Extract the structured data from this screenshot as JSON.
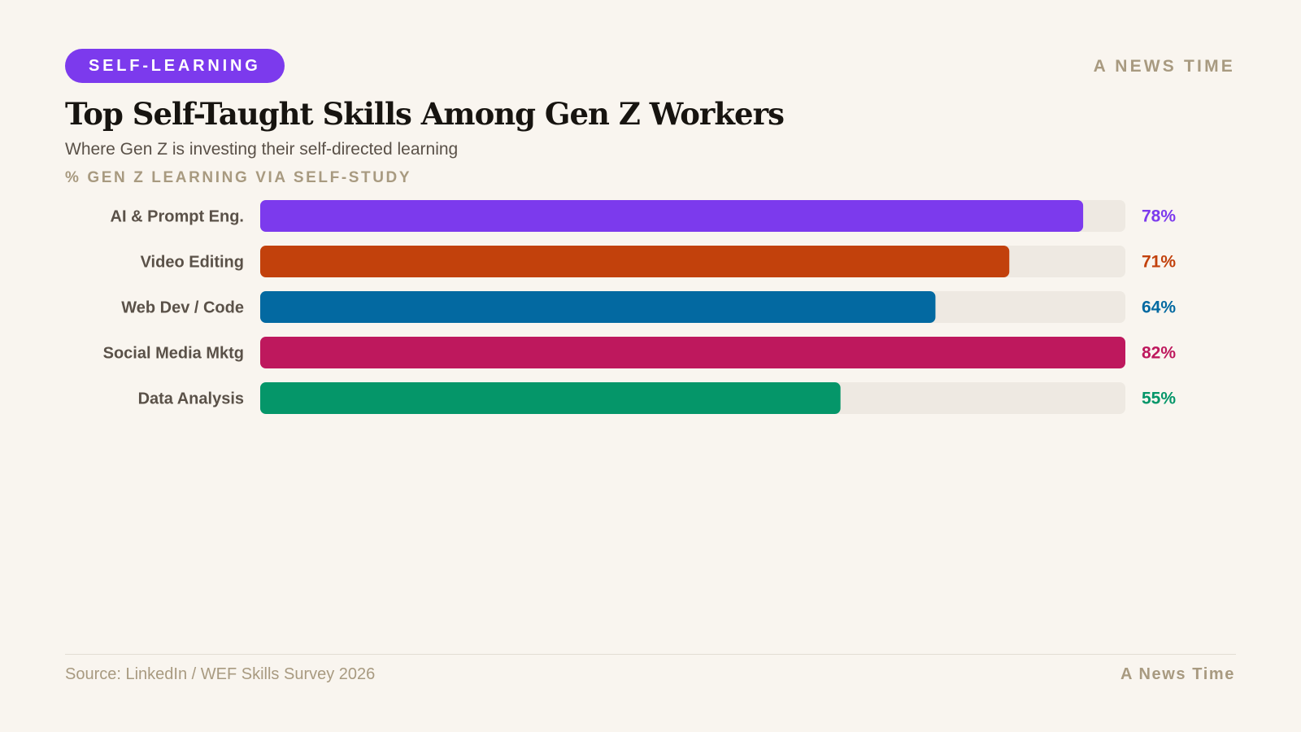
{
  "header": {
    "tag": "SELF-LEARNING",
    "brand": "A NEWS TIME",
    "title": "Top Self-Taught Skills Among Gen Z Workers",
    "subtitle": "Where Gen Z is investing their self-directed learning",
    "axis_label": "% GEN Z LEARNING VIA SELF-STUDY"
  },
  "footer": {
    "source": "Source: LinkedIn / WEF Skills Survey 2026",
    "brand": "A News Time"
  },
  "colors": {
    "background": "#f9f5ef",
    "accent": "#7c3aed",
    "track": "#eee9e2",
    "muted": "#a89a80"
  },
  "chart_data": {
    "type": "bar",
    "orientation": "horizontal",
    "title": "Top Self-Taught Skills Among Gen Z Workers",
    "xlabel": "% GEN Z LEARNING VIA SELF-STUDY",
    "xlim": [
      0,
      82
    ],
    "grid": false,
    "categories": [
      "AI & Prompt Eng.",
      "Video Editing",
      "Web Dev / Code",
      "Social Media Mktg",
      "Data Analysis"
    ],
    "values": [
      78,
      71,
      64,
      82,
      55
    ],
    "value_labels": [
      "78%",
      "71%",
      "64%",
      "82%",
      "55%"
    ],
    "colors": [
      "#7c3aed",
      "#c2410c",
      "#0369a1",
      "#be185d",
      "#059669"
    ]
  }
}
